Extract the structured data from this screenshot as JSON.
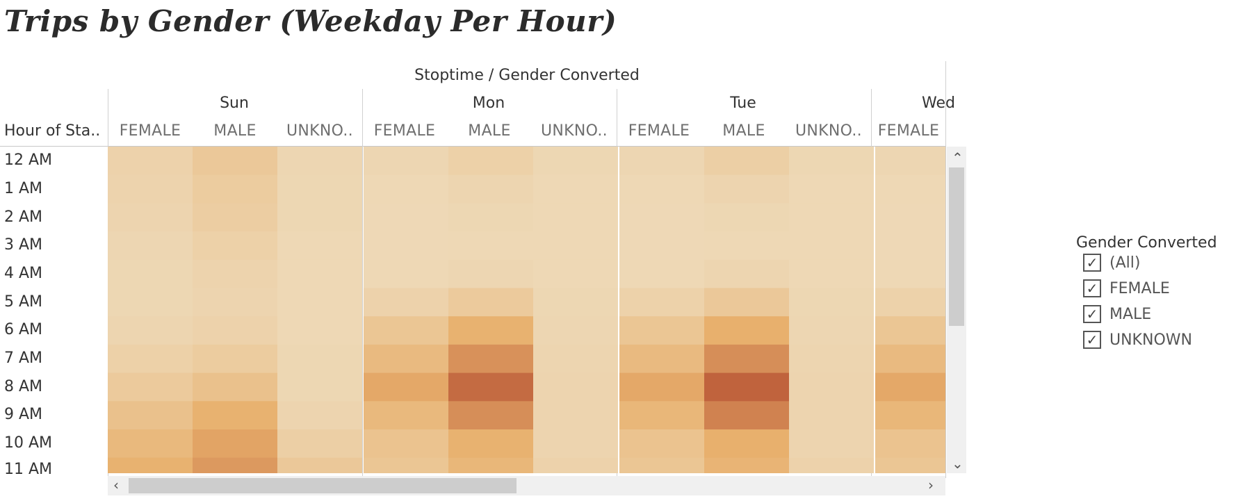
{
  "title": "Trips by Gender (Weekday Per Hour)",
  "column_axis_title": "Stoptime / Gender Converted",
  "row_axis_title": "Hour of Sta..",
  "days": [
    "Sun",
    "Mon",
    "Tue",
    "Wed"
  ],
  "gender_headers": [
    "FEMALE",
    "MALE",
    "UNKNO..",
    "FEMALE",
    "MALE",
    "UNKNO..",
    "FEMALE",
    "MALE",
    "UNKNO..",
    "FEMALE"
  ],
  "hours": [
    "12 AM",
    "1 AM",
    "2 AM",
    "3 AM",
    "4 AM",
    "5 AM",
    "6 AM",
    "7 AM",
    "8 AM",
    "9 AM",
    "10 AM",
    "11 AM"
  ],
  "legend": {
    "title": "Gender Converted",
    "items": [
      {
        "label": "(All)",
        "checked": true
      },
      {
        "label": "FEMALE",
        "checked": true
      },
      {
        "label": "MALE",
        "checked": true
      },
      {
        "label": "UNKNOWN",
        "checked": true
      }
    ]
  },
  "colors": {
    "low": "#eedbbb",
    "mid": "#e8b06d",
    "high": "#c0633d"
  },
  "chart_data": {
    "type": "heatmap",
    "x_column_groups": [
      "Sun",
      "Mon",
      "Tue",
      "Wed"
    ],
    "x_columns": [
      "Sun FEMALE",
      "Sun MALE",
      "Sun UNKNOWN",
      "Mon FEMALE",
      "Mon MALE",
      "Mon UNKNOWN",
      "Tue FEMALE",
      "Tue MALE",
      "Tue UNKNOWN",
      "Wed FEMALE"
    ],
    "y": [
      "12 AM",
      "1 AM",
      "2 AM",
      "3 AM",
      "4 AM",
      "5 AM",
      "6 AM",
      "7 AM",
      "8 AM",
      "9 AM",
      "10 AM",
      "11 AM"
    ],
    "values": [
      [
        0.1,
        0.22,
        0.06,
        0.06,
        0.12,
        0.05,
        0.06,
        0.14,
        0.05,
        0.06
      ],
      [
        0.09,
        0.18,
        0.05,
        0.04,
        0.07,
        0.04,
        0.04,
        0.08,
        0.04,
        0.04
      ],
      [
        0.08,
        0.16,
        0.05,
        0.03,
        0.05,
        0.04,
        0.03,
        0.05,
        0.04,
        0.03
      ],
      [
        0.06,
        0.12,
        0.04,
        0.03,
        0.04,
        0.04,
        0.03,
        0.04,
        0.04,
        0.03
      ],
      [
        0.05,
        0.09,
        0.04,
        0.04,
        0.06,
        0.04,
        0.04,
        0.07,
        0.04,
        0.04
      ],
      [
        0.05,
        0.08,
        0.04,
        0.1,
        0.2,
        0.05,
        0.11,
        0.22,
        0.05,
        0.11
      ],
      [
        0.07,
        0.1,
        0.04,
        0.25,
        0.48,
        0.06,
        0.25,
        0.5,
        0.06,
        0.25
      ],
      [
        0.12,
        0.18,
        0.05,
        0.38,
        0.7,
        0.07,
        0.38,
        0.72,
        0.07,
        0.38
      ],
      [
        0.2,
        0.3,
        0.05,
        0.55,
        0.95,
        0.08,
        0.55,
        1.0,
        0.08,
        0.55
      ],
      [
        0.3,
        0.48,
        0.08,
        0.4,
        0.72,
        0.08,
        0.42,
        0.8,
        0.08,
        0.42
      ],
      [
        0.4,
        0.58,
        0.14,
        0.28,
        0.48,
        0.08,
        0.28,
        0.5,
        0.08,
        0.28
      ],
      [
        0.48,
        0.65,
        0.22,
        0.25,
        0.42,
        0.1,
        0.25,
        0.45,
        0.1,
        0.25
      ]
    ],
    "scale": "relative (0 = lightest, 1 = darkest)"
  }
}
